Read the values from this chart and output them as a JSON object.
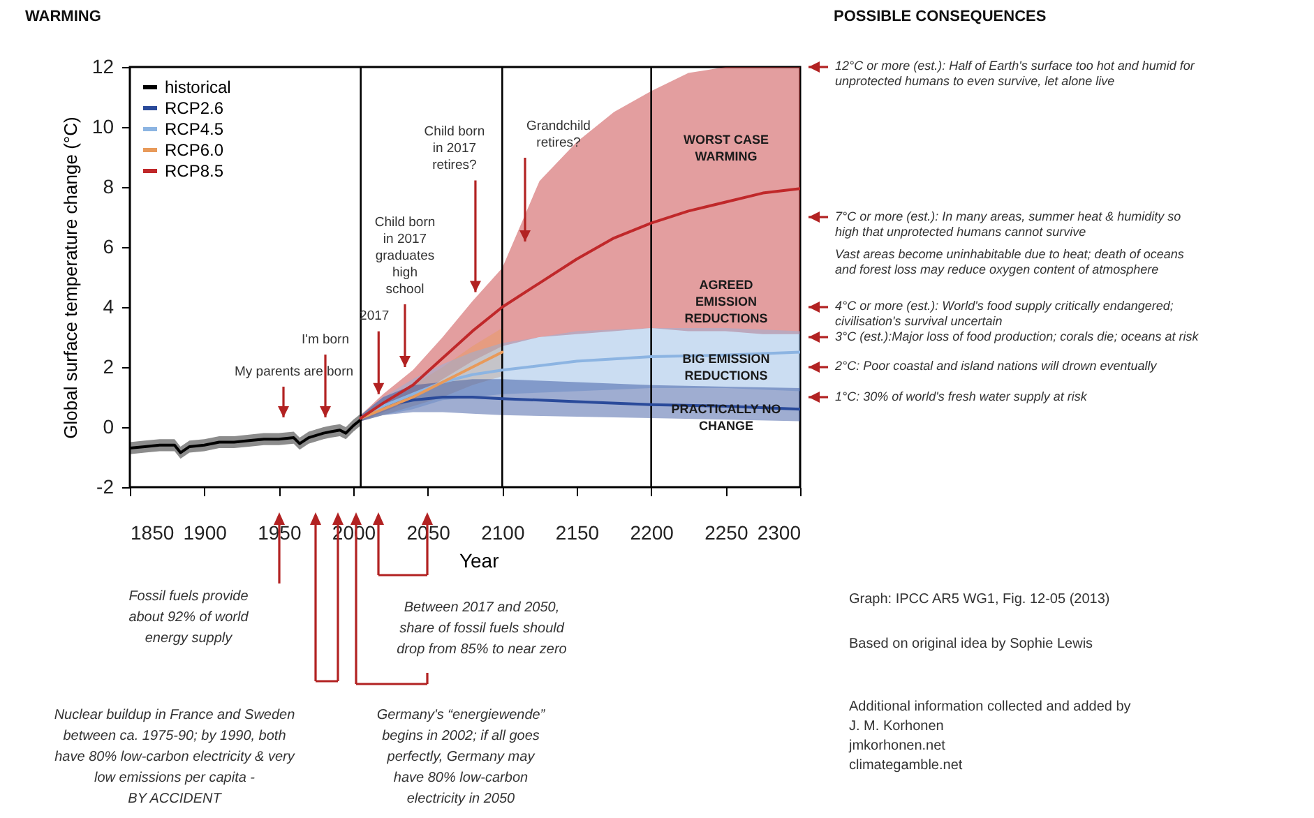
{
  "chart_data": {
    "type": "line",
    "title": "WARMING",
    "xlabel": "Year",
    "ylabel": "Global surface temperature change (°C)",
    "xlim": [
      1850,
      2300
    ],
    "ylim": [
      -2,
      12
    ],
    "xticks": [
      1850,
      1900,
      1950,
      2000,
      2050,
      2100,
      2150,
      2200,
      2250,
      2300
    ],
    "yticks": [
      -2,
      0,
      2,
      4,
      6,
      8,
      10,
      12
    ],
    "grid": false,
    "legend": "top left",
    "line_style": "solid",
    "marker": "none",
    "series": [
      {
        "name": "historical",
        "color": "#000000",
        "x": [
          1850,
          1860,
          1870,
          1880,
          1884,
          1890,
          1900,
          1910,
          1920,
          1930,
          1940,
          1950,
          1960,
          1964,
          1970,
          1980,
          1985,
          1991,
          1995,
          2000,
          2005
        ],
        "values": [
          -0.7,
          -0.65,
          -0.6,
          -0.6,
          -0.85,
          -0.65,
          -0.6,
          -0.5,
          -0.5,
          -0.45,
          -0.4,
          -0.4,
          -0.35,
          -0.55,
          -0.35,
          -0.2,
          -0.15,
          -0.1,
          -0.2,
          0.05,
          0.25
        ],
        "lower": [
          -0.9,
          -0.85,
          -0.8,
          -0.8,
          -1.05,
          -0.85,
          -0.8,
          -0.7,
          -0.7,
          -0.65,
          -0.6,
          -0.6,
          -0.55,
          -0.75,
          -0.55,
          -0.4,
          -0.35,
          -0.3,
          -0.4,
          -0.15,
          0.05
        ],
        "upper": [
          -0.5,
          -0.45,
          -0.4,
          -0.4,
          -0.65,
          -0.45,
          -0.4,
          -0.3,
          -0.3,
          -0.25,
          -0.2,
          -0.2,
          -0.15,
          -0.35,
          -0.15,
          0,
          0.05,
          0.1,
          0,
          0.25,
          0.45
        ]
      },
      {
        "name": "RCP2.6",
        "color": "#2a4a9a",
        "x": [
          2005,
          2020,
          2040,
          2060,
          2080,
          2100,
          2150,
          2200,
          2250,
          2300
        ],
        "values": [
          0.3,
          0.7,
          0.9,
          1.0,
          1.0,
          0.95,
          0.85,
          0.75,
          0.7,
          0.6
        ],
        "lower": [
          0.2,
          0.4,
          0.5,
          0.5,
          0.45,
          0.4,
          0.35,
          0.3,
          0.25,
          0.2
        ],
        "upper": [
          0.4,
          1.0,
          1.4,
          1.5,
          1.6,
          1.6,
          1.5,
          1.4,
          1.35,
          1.3
        ]
      },
      {
        "name": "RCP4.5",
        "color": "#8cb4e2",
        "x": [
          2005,
          2020,
          2040,
          2060,
          2080,
          2100,
          2150,
          2200,
          2250,
          2300
        ],
        "values": [
          0.3,
          0.7,
          1.1,
          1.5,
          1.75,
          1.9,
          2.2,
          2.35,
          2.4,
          2.5
        ],
        "lower": [
          0.2,
          0.4,
          0.6,
          0.9,
          1.0,
          1.1,
          1.2,
          1.3,
          1.3,
          1.2
        ],
        "upper": [
          0.4,
          1.0,
          1.6,
          2.1,
          2.5,
          2.8,
          3.2,
          3.3,
          3.3,
          3.2
        ]
      },
      {
        "name": "RCP6.0",
        "color": "#e89a5a",
        "x": [
          2005,
          2020,
          2040,
          2060,
          2080,
          2100
        ],
        "values": [
          0.3,
          0.6,
          1.0,
          1.5,
          2.0,
          2.5
        ],
        "lower": [
          0.2,
          0.4,
          0.7,
          1.0,
          1.4,
          1.7
        ],
        "upper": [
          0.4,
          0.9,
          1.4,
          2.0,
          2.7,
          3.3
        ]
      },
      {
        "name": "RCP8.5",
        "color": "#c0282a",
        "x": [
          2005,
          2020,
          2040,
          2060,
          2080,
          2100,
          2125,
          2150,
          2175,
          2200,
          2225,
          2250,
          2275,
          2300
        ],
        "values": [
          0.3,
          0.8,
          1.4,
          2.3,
          3.2,
          4.0,
          4.8,
          5.6,
          6.3,
          6.8,
          7.2,
          7.5,
          7.8,
          7.95
        ],
        "lower": [
          0.2,
          0.5,
          0.9,
          1.6,
          2.2,
          2.7,
          3.0,
          3.1,
          3.2,
          3.3,
          3.2,
          3.2,
          3.1,
          3.1
        ],
        "upper": [
          0.4,
          1.1,
          1.9,
          3.0,
          4.2,
          5.3,
          8.2,
          9.5,
          10.5,
          11.2,
          11.8,
          12,
          12,
          12
        ]
      }
    ],
    "ref_lines": [
      {
        "axis": "x",
        "value": 2005
      },
      {
        "axis": "x",
        "value": 2100
      },
      {
        "axis": "x",
        "value": 2200
      }
    ],
    "annotations": [
      "POSSIBLE CONSEQUENCES",
      "My parents are born",
      "I'm born",
      {
        "text": "2017",
        "x": 2017,
        "y": 1.1
      },
      "Child born\nin 2017\ngraduates\nhigh\nschool",
      {
        "text": "Child born\nin 2017\nretires?",
        "x": 2082,
        "y": 4.5
      },
      "Grandchild\nretires?",
      "WORST CASE\nWARMING",
      "AGREED\nEMISSION\nREDUCTIONS",
      "BIG EMISSION\nREDUCTIONS",
      "PRACTICALLY NO\nCHANGE",
      "12°C or more (est.): Half of Earth's surface too hot and humid for\nunprotected humans to even survive, let alone live",
      "7°C or more (est.): In many areas, summer heat & humidity so\nhigh that unprotected humans cannot survive",
      "Vast areas become uninhabitable due to heat; death of oceans\nand forest loss may reduce oxygen content of atmosphere",
      "4°C or more (est.): World's food supply critically endangered;\ncivilisation's survival uncertain",
      "3°C (est.):Major loss of food production; corals die; oceans at risk",
      "2°C: Poor coastal and island nations will drown eventually",
      "1°C: 30% of world's fresh water supply at risk",
      "Fossil fuels provide\nabout 92% of world\nenergy supply",
      "Nuclear buildup in France and Sweden\nbetween ca. 1975-90; by 1990, both\nhave 80% low-carbon electricity & very\nlow emissions per capita -\nBY ACCIDENT",
      "Germany's “energiewende”\nbegins in 2002; if all goes\nperfectly, Germany may\nhave 80% low-carbon\nelectricity in 2050",
      "Between 2017 and 2050,\nshare of fossil fuels should\ndrop from 85% to near zero",
      "Graph: IPCC AR5 WG1, Fig. 12-05 (2013)",
      "Based on original idea by Sophie Lewis",
      "Additional information collected and added by\nJ. M. Korhonen\njmkorhonen.net\nclimategamble.net"
    ]
  }
}
